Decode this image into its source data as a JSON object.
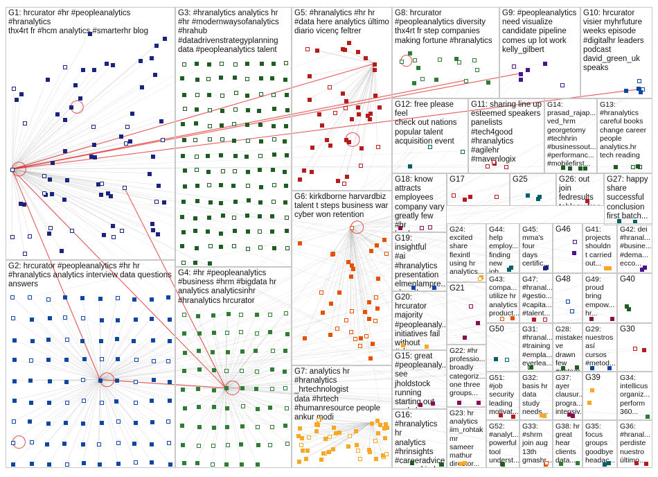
{
  "title": "",
  "colors": {
    "edge": "#b8b8b8",
    "edge_red": "#e02020",
    "group_border": "#c8c8c8",
    "node_palettes": [
      "#1a237e",
      "#0d47a1",
      "#1b5e20",
      "#2e7d32",
      "#b71c1c",
      "#880e4f",
      "#e65100",
      "#f9a825",
      "#4a148c",
      "#006064"
    ]
  },
  "groups": [
    {
      "id": "G1",
      "label": "G1: hrcurator #hr #peopleanalytics #hranalytics\nthx4rt fr #hcm analytics #smarterhr blog"
    },
    {
      "id": "G2",
      "label": "G2: hrcurator #peopleanalytics #hr hr\n#hranalytics analytics interview data questions\nanswers"
    },
    {
      "id": "G3",
      "label": "G3: #hranalytics analytics hr\n#hr #modernwaysofanalytics\n#hrahub\n#datadrivenstrategyplanning\ndata #peopleanalytics talent"
    },
    {
      "id": "G4",
      "label": "G4: #hr #peopleanalytics\n#business #hrm #bigdata hr\nanalytics analyticsinhr\n#hranalytics hrcurator"
    },
    {
      "id": "G5",
      "label": "G5: #hranalytics #hr hr\n#data here analytics último\ndiario vicenç feltrer"
    },
    {
      "id": "G6",
      "label": "G6: kirkdborne harvardbiz\ntalent t steps business war\ncyber won retention"
    },
    {
      "id": "G7",
      "label": "G7: analytics hr\n#hranalytics _hrtechnologist\ndata #hrtech\n#humanresource people\nankur modi"
    },
    {
      "id": "G8",
      "label": "G8: hrcurator\n#peopleanalytics diversity\nthx4rt fr step companies\nmaking fortune #hranalytics"
    },
    {
      "id": "G9",
      "label": "G9: #peopleanalytics\nneed visualize\ncandidate pipeline\ncomes up lot work\nkelly_gilbert"
    },
    {
      "id": "G10",
      "label": "G10: hrcurator\nvisier myhrfuture\nweeks episode\n#digitalhr leaders\npodcast\ndavid_green_uk\nspeaks"
    },
    {
      "id": "G11",
      "label": "G11: sharing line up\nesteemed speakers\npanelists\n#tech4good\n#hranalytics #agilehr\n#mavenlogix"
    },
    {
      "id": "G12",
      "label": "G12: free please feel\ncheck out nations\npopular talent\nacquisition event"
    },
    {
      "id": "G13",
      "label": "G13:\n#hranalytics\ncareful books\nchange career\npeople\nanalytics.hr\ntech reading"
    },
    {
      "id": "G14",
      "label": "G14:\nprasad_rajap...\nved_hrm\ngeorgetomy\n#techhrin\n#businessout...\n#performanc...\n#mobilefirst..."
    },
    {
      "id": "G15",
      "label": "G15: great\n#peopleanaly...\nsee jholdstock\nrunning\nstarting out\nworkshop..."
    },
    {
      "id": "G16",
      "label": "G16:\n#hranalytics hr\nanalytics\n#hrinsights\n#careeradvice\nsegunakiode..."
    },
    {
      "id": "G17",
      "label": "G17"
    },
    {
      "id": "G18",
      "label": "G18: know\nattracts\nemployees\ncompany vary\ngreatly few #hr\nleaders use"
    },
    {
      "id": "G19",
      "label": "G19: insightful\n#ai\n#hranalytics\npresentation\nelmenlampre...\nalgorithms..."
    },
    {
      "id": "G20",
      "label": "G20: hrcurator\nmajority\n#peopleanaly...\ninitiatives fail\nwithout\n#change..."
    },
    {
      "id": "G21",
      "label": "G21"
    },
    {
      "id": "G22",
      "label": "G22: #hr\nprofessio...\nbroadly\ncategoriz...\none three\ngroups..."
    },
    {
      "id": "G23",
      "label": "G23: hr\nanalytics\niim_rohtak\nmr sameer\nmathur\ndirector..."
    },
    {
      "id": "G24",
      "label": "G24:\nexcited\nshare\nflexintl\nusing hr\nanalytics..."
    },
    {
      "id": "G25",
      "label": "G25"
    },
    {
      "id": "G26",
      "label": "G26: out join\nfedresults\ntableau free\nwebinar\nlearn more..."
    },
    {
      "id": "G27",
      "label": "G27: happy\nshare\nsuccessful\nconclusion\nfirst batch..."
    },
    {
      "id": "G28",
      "label": "G28:\nmistakes\nve drawn\nfew\n#datadr..."
    },
    {
      "id": "G29",
      "label": "G29:\nnuestros\nasí\ncursos\n#metod..."
    },
    {
      "id": "G30",
      "label": "G30"
    },
    {
      "id": "G31",
      "label": "G31:\n#hranal...\n#training\n#empla...\neverlea..."
    },
    {
      "id": "G32",
      "label": "G32:\nbasis hr\ndata\nstudy\nneeds..."
    },
    {
      "id": "G33",
      "label": "G33:\n#shrm\njoin aug\n13th\ngmashr..."
    },
    {
      "id": "G34",
      "label": "G34:\nintellicus\norganiz...\nperform\n360..."
    },
    {
      "id": "G35",
      "label": "G35:\nfocus\ngroups\ngoodbye\nheadac..."
    },
    {
      "id": "G36",
      "label": "G36:\n#hranal...\nperdiste\nnuestro\núltimo..."
    },
    {
      "id": "G37",
      "label": "G37:\nayer\nclausur...\nprogra...\nintensiv..."
    },
    {
      "id": "G38",
      "label": "G38: hr\ngreat\nhear\nclients\ndata..."
    },
    {
      "id": "G39",
      "label": "G39"
    },
    {
      "id": "G40",
      "label": "G40"
    },
    {
      "id": "G41",
      "label": "G41:\nprojects\nshouldn\nt carried\nout..."
    },
    {
      "id": "G42",
      "label": "G42: dei\n#hranal...\n#busine...\n#dema...\necco..."
    },
    {
      "id": "G43",
      "label": "G43:\ncompa...\nutilize hr\nanalytics\nproduct..."
    },
    {
      "id": "G44",
      "label": "G44:\nhelp\nemploy...\nfinding\nnew job..."
    },
    {
      "id": "G45",
      "label": "G45:\nmma's\nfour\ndays\ncertific..."
    },
    {
      "id": "G46",
      "label": "G46"
    },
    {
      "id": "G47",
      "label": "G47:\n#hranal...\n#gestio...\n#capita...\n#talent..."
    },
    {
      "id": "G48",
      "label": "G48"
    },
    {
      "id": "G49",
      "label": "G49:\nproud\nbring\nempow...\nhr..."
    },
    {
      "id": "G50",
      "label": "G50"
    },
    {
      "id": "G51",
      "label": "G51:\n#job\nsecurity\nleading\nmotivat..."
    },
    {
      "id": "G52",
      "label": "G52:\n#analyt...\npowerful\ntool\nunderst..."
    }
  ]
}
